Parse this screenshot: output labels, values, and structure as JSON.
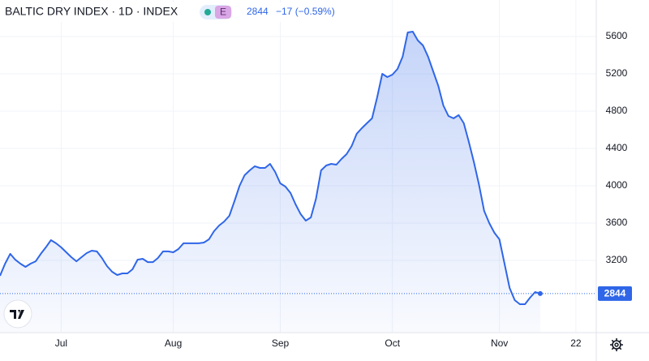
{
  "header": {
    "change": "−17 (−0.59%)",
    "badge": "E"
  },
  "chart_data": {
    "type": "area",
    "title": "BALTIC DRY INDEX · 1D · INDEX",
    "color": "#2f66e8",
    "categories": [
      null,
      null,
      null,
      null,
      null,
      null,
      null,
      null,
      null,
      null,
      null,
      null,
      "Jul",
      null,
      null,
      null,
      null,
      null,
      null,
      null,
      null,
      null,
      null,
      null,
      null,
      null,
      null,
      null,
      null,
      null,
      null,
      null,
      null,
      null,
      "Aug",
      null,
      null,
      null,
      null,
      null,
      null,
      null,
      null,
      null,
      null,
      null,
      null,
      null,
      null,
      null,
      null,
      null,
      null,
      null,
      null,
      "Sep",
      null,
      null,
      null,
      null,
      null,
      null,
      null,
      null,
      null,
      null,
      null,
      null,
      null,
      null,
      null,
      null,
      null,
      null,
      null,
      null,
      null,
      "Oct",
      null,
      null,
      null,
      null,
      null,
      null,
      null,
      null,
      null,
      null,
      null,
      null,
      null,
      null,
      null,
      null,
      null,
      null,
      null,
      null,
      "Nov",
      null,
      null,
      null,
      null,
      null,
      null,
      null,
      null,
      null,
      null,
      null,
      null,
      null,
      null,
      "22",
      null,
      null,
      null
    ],
    "values": [
      3035,
      3165,
      3270,
      3208,
      3165,
      3130,
      3165,
      3190,
      3270,
      3340,
      3417,
      3383,
      3340,
      3287,
      3235,
      3190,
      3235,
      3278,
      3304,
      3296,
      3226,
      3139,
      3078,
      3043,
      3061,
      3061,
      3104,
      3208,
      3217,
      3182,
      3182,
      3226,
      3296,
      3296,
      3287,
      3322,
      3383,
      3383,
      3383,
      3383,
      3391,
      3426,
      3513,
      3574,
      3617,
      3678,
      3835,
      4000,
      4113,
      4165,
      4209,
      4191,
      4191,
      4235,
      4148,
      4026,
      3991,
      3922,
      3800,
      3696,
      3626,
      3661,
      3861,
      4165,
      4217,
      4235,
      4226,
      4287,
      4339,
      4426,
      4557,
      4617,
      4670,
      4722,
      4948,
      5200,
      5165,
      5191,
      5252,
      5383,
      5643,
      5652,
      5557,
      5504,
      5383,
      5226,
      5070,
      4861,
      4748,
      4722,
      4757,
      4670,
      4470,
      4252,
      4009,
      3730,
      3600,
      3496,
      3426,
      3165,
      2904,
      2774,
      2730,
      2730,
      2800,
      2861,
      2844,
      null,
      null,
      null,
      null,
      null,
      null,
      null,
      null,
      null,
      null
    ],
    "ylim": [
      2426,
      5991
    ],
    "yticks": [
      3200,
      3600,
      4000,
      4400,
      4800,
      5200,
      5600
    ],
    "grid": true
  }
}
